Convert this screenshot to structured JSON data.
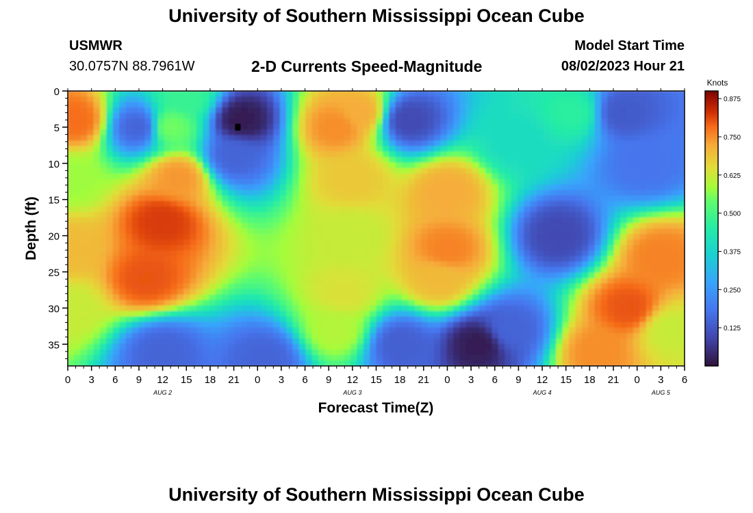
{
  "header": {
    "title": "University of Southern Mississippi Ocean Cube",
    "station_name": "USMWR",
    "station_coords": "30.0757N  88.7961W",
    "subtitle": "2-D Currents Speed-Magnitude",
    "model_start_label": "Model Start Time",
    "model_start_value": "08/02/2023 Hour 21"
  },
  "footer": {
    "title": "University of Southern Mississippi Ocean Cube"
  },
  "chart_data": {
    "type": "heatmap",
    "title": "2-D Currents Speed-Magnitude",
    "xlabel": "Forecast Time(Z)",
    "ylabel": "Depth (ft)",
    "x_hours_span": [
      0,
      78
    ],
    "x_tick_labels": [
      "0",
      "3",
      "6",
      "9",
      "12",
      "15",
      "18",
      "21",
      "0",
      "3",
      "6",
      "9",
      "12",
      "15",
      "18",
      "21",
      "0",
      "3",
      "6",
      "9",
      "12",
      "15",
      "18",
      "21",
      "0",
      "3",
      "6"
    ],
    "date_labels": [
      {
        "label": "AUG 2",
        "hour": 12
      },
      {
        "label": "AUG 3",
        "hour": 36
      },
      {
        "label": "AUG 4",
        "hour": 60
      },
      {
        "label": "AUG 5",
        "hour": 75
      }
    ],
    "ylim": [
      0,
      38
    ],
    "y_ticks": [
      0,
      5,
      10,
      15,
      20,
      25,
      30,
      35
    ],
    "colorbar": {
      "title": "Knots",
      "ticks": [
        "0.125",
        "0.250",
        "0.375",
        "0.500",
        "0.625",
        "0.750",
        "0.875"
      ],
      "range": [
        0,
        0.9
      ]
    },
    "features": [
      {
        "hour": 1,
        "depth": 4,
        "value": 0.78
      },
      {
        "hour": 0,
        "depth": 12,
        "value": 0.58
      },
      {
        "hour": 0,
        "depth": 22,
        "value": 0.7
      },
      {
        "hour": 0,
        "depth": 30,
        "value": 0.62
      },
      {
        "hour": 9,
        "depth": 5,
        "value": 0.15
      },
      {
        "hour": 13,
        "depth": 5,
        "value": 0.55
      },
      {
        "hour": 15,
        "depth": 1,
        "value": 0.48
      },
      {
        "hour": 12,
        "depth": 18,
        "value": 0.82
      },
      {
        "hour": 10,
        "depth": 26,
        "value": 0.8
      },
      {
        "hour": 14,
        "depth": 12,
        "value": 0.74
      },
      {
        "hour": 22,
        "depth": 4,
        "value": 0.02
      },
      {
        "hour": 21,
        "depth": 9,
        "value": 0.15
      },
      {
        "hour": 12,
        "depth": 36,
        "value": 0.15
      },
      {
        "hour": 25,
        "depth": 37,
        "value": 0.15
      },
      {
        "hour": 34,
        "depth": 5,
        "value": 0.75
      },
      {
        "hour": 37,
        "depth": 3,
        "value": 0.72
      },
      {
        "hour": 36,
        "depth": 12,
        "value": 0.68
      },
      {
        "hour": 36,
        "depth": 20,
        "value": 0.62
      },
      {
        "hour": 35,
        "depth": 28,
        "value": 0.64
      },
      {
        "hour": 34,
        "depth": 33,
        "value": 0.6
      },
      {
        "hour": 43,
        "depth": 4,
        "value": 0.1
      },
      {
        "hour": 42,
        "depth": 35,
        "value": 0.14
      },
      {
        "hour": 48,
        "depth": 14,
        "value": 0.72
      },
      {
        "hour": 48,
        "depth": 22,
        "value": 0.76
      },
      {
        "hour": 47,
        "depth": 26,
        "value": 0.7
      },
      {
        "hour": 52,
        "depth": 35,
        "value": 0.02
      },
      {
        "hour": 56,
        "depth": 33,
        "value": 0.15
      },
      {
        "hour": 62,
        "depth": 20,
        "value": 0.1
      },
      {
        "hour": 57,
        "depth": 7,
        "value": 0.4
      },
      {
        "hour": 64,
        "depth": 3,
        "value": 0.46
      },
      {
        "hour": 70,
        "depth": 3,
        "value": 0.13
      },
      {
        "hour": 73,
        "depth": 10,
        "value": 0.18
      },
      {
        "hour": 75,
        "depth": 23,
        "value": 0.76
      },
      {
        "hour": 71,
        "depth": 30,
        "value": 0.8
      },
      {
        "hour": 67,
        "depth": 36,
        "value": 0.75
      },
      {
        "hour": 76,
        "depth": 33,
        "value": 0.62
      }
    ],
    "marker": {
      "hour": 21.5,
      "depth": 5
    }
  }
}
